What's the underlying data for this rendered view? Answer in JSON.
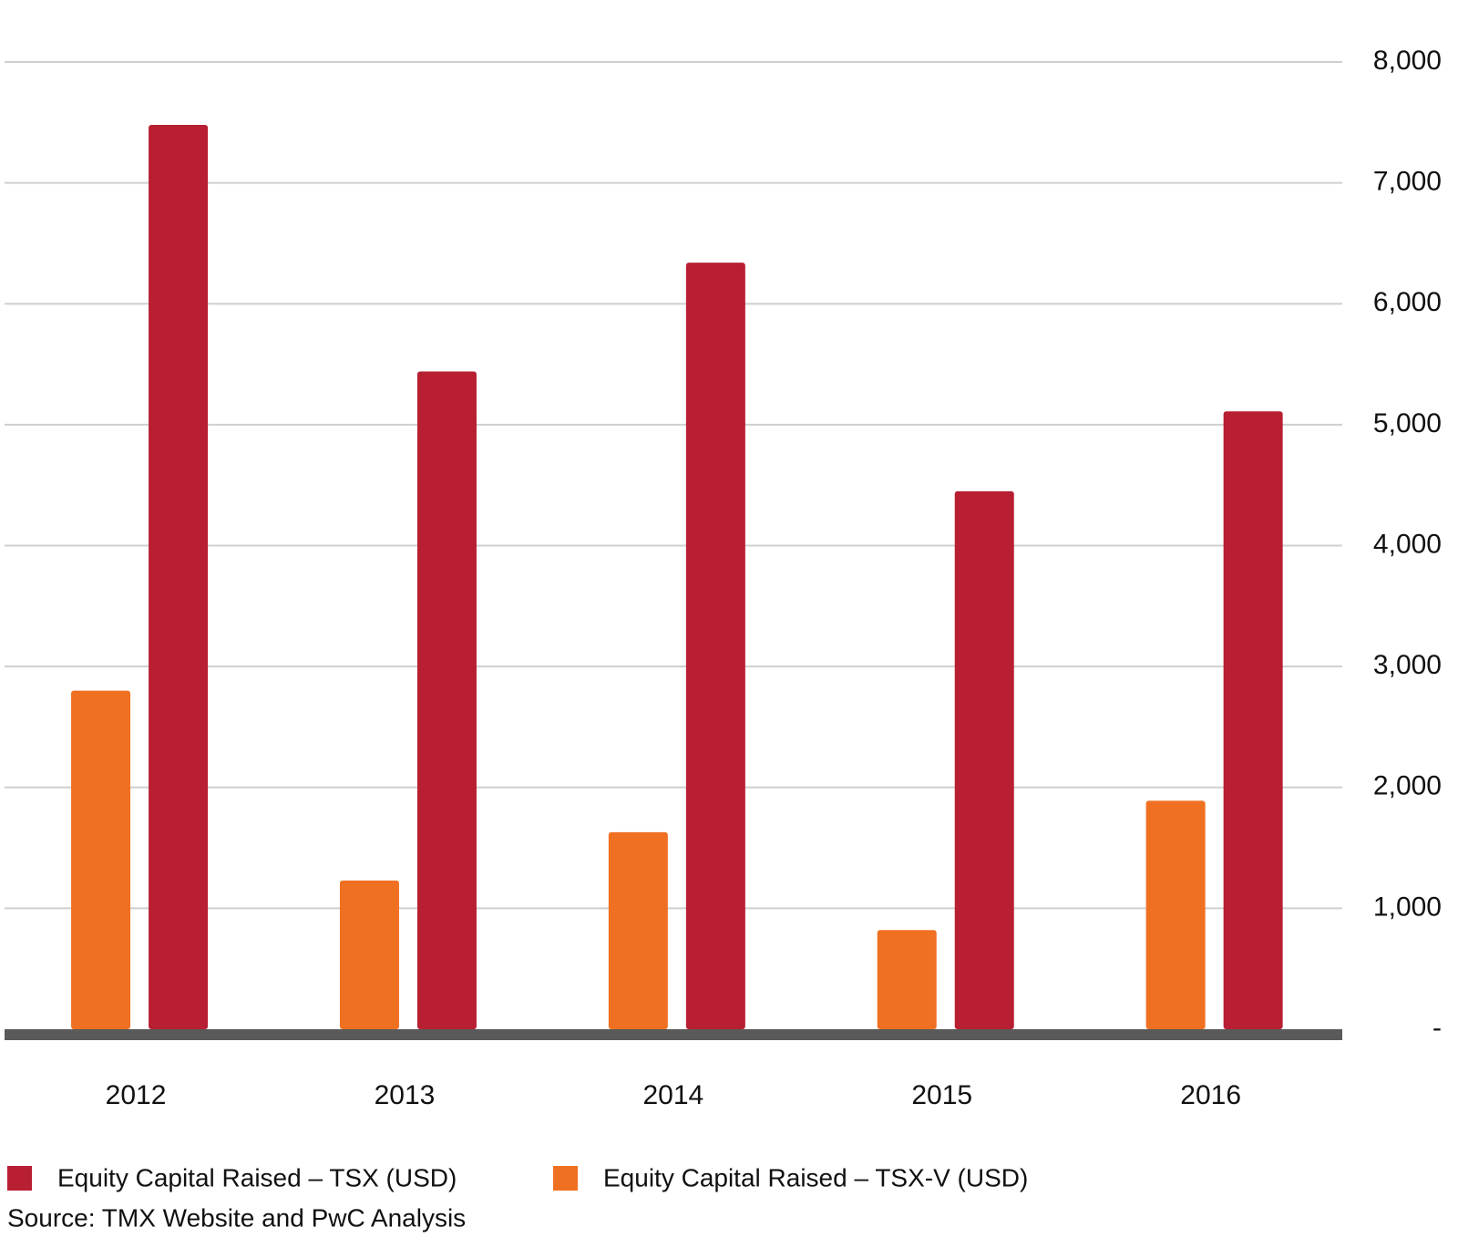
{
  "chart_data": {
    "type": "bar",
    "categories": [
      "2012",
      "2013",
      "2014",
      "2015",
      "2016"
    ],
    "series": [
      {
        "name": "Equity Capital Raised – TSX-V (USD)",
        "color": "#f07022",
        "values": [
          2800,
          1230,
          1630,
          820,
          1890
        ]
      },
      {
        "name": "Equity Capital Raised – TSX (USD)",
        "color": "#b81f33",
        "values": [
          7480,
          5440,
          6340,
          4450,
          5110
        ]
      }
    ],
    "ylim": [
      0,
      8000
    ],
    "yticks": [
      {
        "value": 0,
        "label": "-"
      },
      {
        "value": 1000,
        "label": "1,000"
      },
      {
        "value": 2000,
        "label": "2,000"
      },
      {
        "value": 3000,
        "label": "3,000"
      },
      {
        "value": 4000,
        "label": "4,000"
      },
      {
        "value": 5000,
        "label": "5,000"
      },
      {
        "value": 6000,
        "label": "6,000"
      },
      {
        "value": 7000,
        "label": "7,000"
      },
      {
        "value": 8000,
        "label": "8,000"
      }
    ],
    "grid": true,
    "source": "Source: TMX Website and PwC Analysis"
  }
}
